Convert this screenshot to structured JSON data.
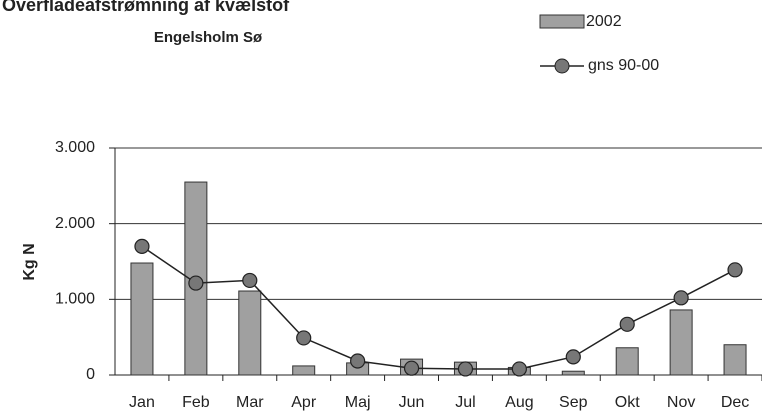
{
  "chart_data": {
    "type": "bar_line",
    "title": "Overfladeafstrømning af kvælstof",
    "subtitle": "Engelsholm Sø",
    "y_label": "Kg N",
    "categories": [
      "Jan",
      "Feb",
      "Mar",
      "Apr",
      "Maj",
      "Jun",
      "Jul",
      "Aug",
      "Sep",
      "Okt",
      "Nov",
      "Dec"
    ],
    "series": [
      {
        "name": "2002",
        "type": "bar",
        "color": "#a0a0a0",
        "values": [
          1480,
          2550,
          1110,
          120,
          160,
          210,
          170,
          100,
          50,
          360,
          860,
          400
        ]
      },
      {
        "name": "gns 90-00",
        "type": "line",
        "color": "#777777",
        "values": [
          1700,
          1215,
          1250,
          490,
          185,
          90,
          80,
          80,
          240,
          670,
          1020,
          1390
        ]
      }
    ],
    "ylim": [
      0,
      3000
    ],
    "yticks": [
      0,
      {
        "value": 1000,
        "label": "1.000"
      },
      {
        "value": 2000,
        "label": "2.000"
      },
      {
        "value": 3000,
        "label": "3.000"
      }
    ],
    "grid": true
  }
}
